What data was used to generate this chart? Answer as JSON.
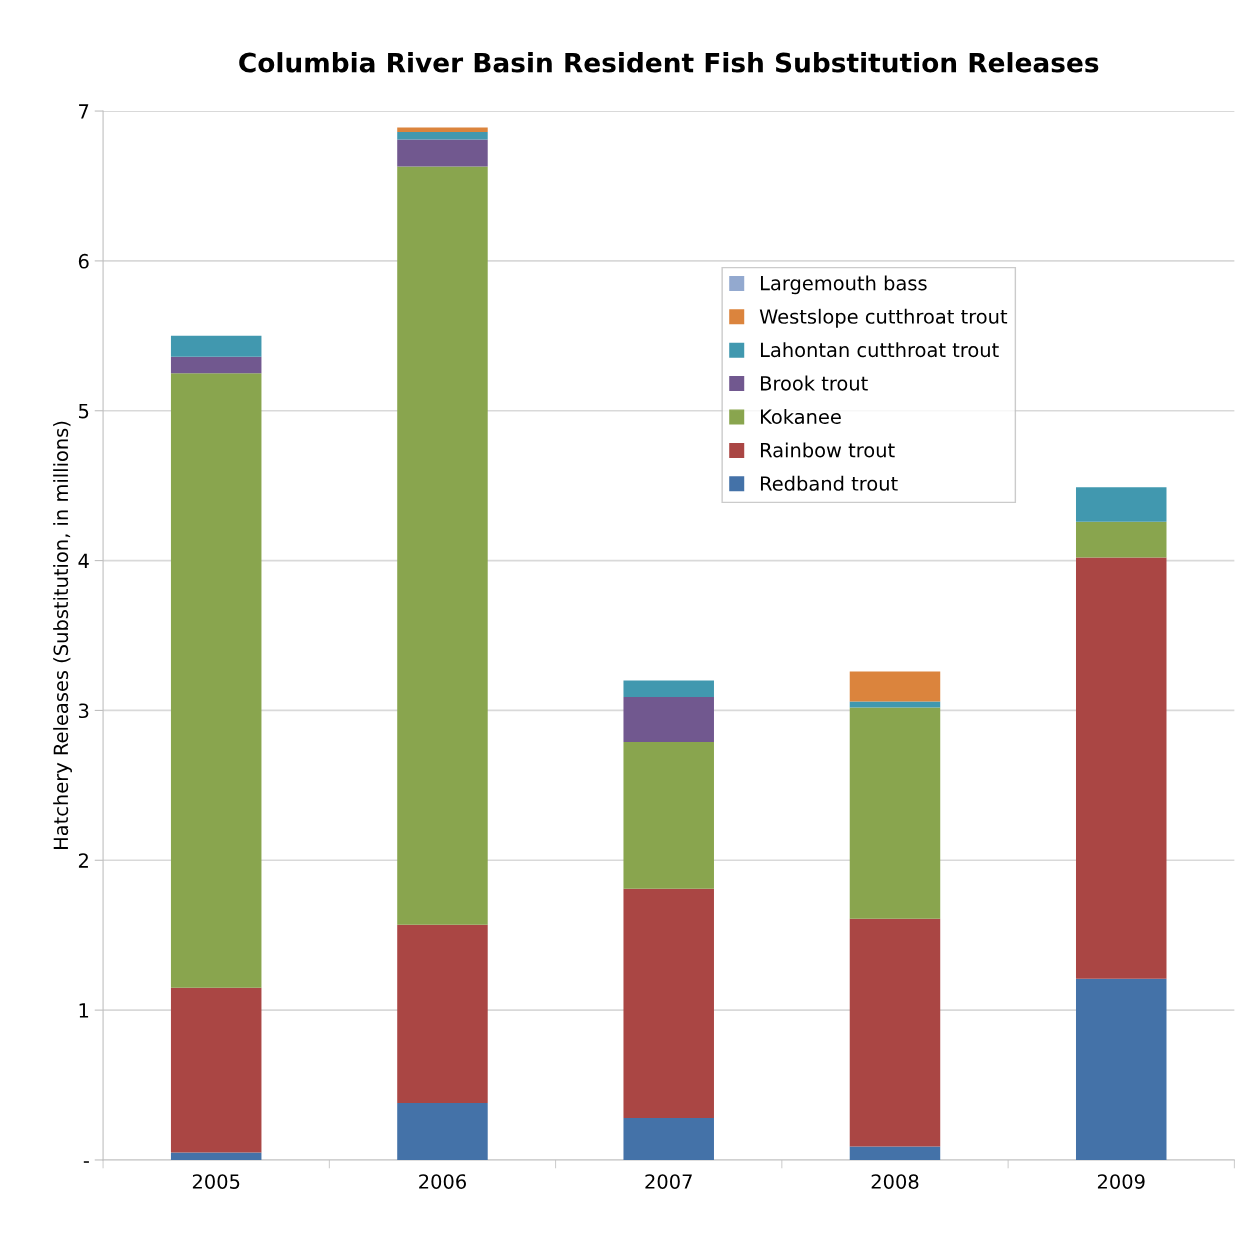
{
  "chart_data": {
    "type": "bar",
    "stacked": true,
    "title": "Columbia River Basin Resident Fish Substitution Releases",
    "ylabel": "Hatchery Releases (Substitution, in millions)",
    "categories": [
      "2005",
      "2006",
      "2007",
      "2008",
      "2009"
    ],
    "series": [
      {
        "name": "Redband trout",
        "color": "#4472a8",
        "values": [
          0.05,
          0.38,
          0.28,
          0.09,
          1.21
        ]
      },
      {
        "name": "Rainbow trout",
        "color": "#aa4644",
        "values": [
          1.1,
          1.19,
          1.53,
          1.52,
          2.81
        ]
      },
      {
        "name": "Kokanee",
        "color": "#89a54e",
        "values": [
          4.1,
          5.06,
          0.98,
          1.41,
          0.24
        ]
      },
      {
        "name": "Brook trout",
        "color": "#71588f",
        "values": [
          0.11,
          0.18,
          0.3,
          0,
          0
        ]
      },
      {
        "name": "Lahontan cutthroat trout",
        "color": "#4198af",
        "values": [
          0.14,
          0.05,
          0.11,
          0.04,
          0.23
        ]
      },
      {
        "name": "Westslope cutthroat trout",
        "color": "#db843d",
        "values": [
          0,
          0.03,
          0,
          0.2,
          0
        ]
      },
      {
        "name": "Largemouth bass",
        "color": "#93a9cf",
        "values": [
          0,
          0,
          0,
          0,
          0
        ]
      }
    ],
    "ylim": [
      0,
      7
    ],
    "yticks": [
      {
        "value": 0,
        "label": "-"
      },
      1,
      2,
      3,
      4,
      5,
      6,
      7
    ],
    "grid": "y",
    "legend": "top right"
  }
}
